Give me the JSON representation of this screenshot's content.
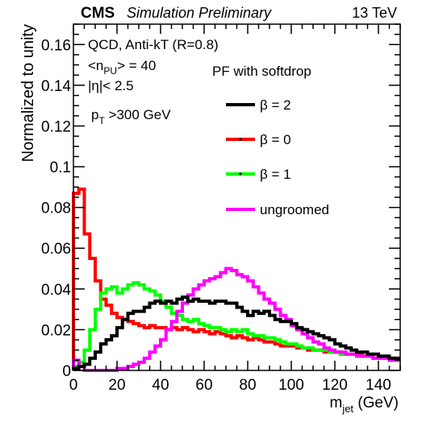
{
  "header": {
    "cms": "CMS",
    "subtitle": "Simulation Preliminary",
    "energy": "13 TeV"
  },
  "annotations": {
    "line1": "QCD, Anti-kT (R=0.8)",
    "pu_open": "<n",
    "pu_sub": "PU",
    "pu_close": "> = 40",
    "eta": "|η|< 2.5",
    "pt_main": "p",
    "pt_sub": "T",
    "pt_rest": " >300 GeV"
  },
  "chart_data": {
    "type": "line",
    "step": true,
    "xlabel_main": "m",
    "xlabel_sub": "jet",
    "xlabel_rest": " (GeV)",
    "ylabel": "Normalized to unity",
    "xlim": [
      0,
      150
    ],
    "ylim": [
      0,
      0.17
    ],
    "xticks": [
      "0",
      "20",
      "40",
      "60",
      "80",
      "100",
      "120",
      "140"
    ],
    "yticks": [
      "0",
      "0.02",
      "0.04",
      "0.06",
      "0.08",
      "0.1",
      "0.12",
      "0.14",
      "0.16"
    ],
    "legend_title": "PF with softdrop",
    "bin_width": 2.5,
    "series": [
      {
        "name": "β = 2",
        "color": "#000000",
        "values": [
          0.001,
          0.002,
          0.003,
          0.006,
          0.009,
          0.013,
          0.015,
          0.017,
          0.021,
          0.025,
          0.028,
          0.029,
          0.029,
          0.031,
          0.033,
          0.034,
          0.033,
          0.034,
          0.033,
          0.035,
          0.036,
          0.034,
          0.035,
          0.034,
          0.034,
          0.033,
          0.034,
          0.034,
          0.033,
          0.033,
          0.031,
          0.029,
          0.027,
          0.029,
          0.028,
          0.029,
          0.027,
          0.025,
          0.024,
          0.024,
          0.023,
          0.021,
          0.02,
          0.019,
          0.018,
          0.017,
          0.016,
          0.015,
          0.013,
          0.012,
          0.011,
          0.01,
          0.009,
          0.009,
          0.008,
          0.008,
          0.007,
          0.007,
          0.006,
          0.006
        ]
      },
      {
        "name": "β = 0",
        "color": "#ff0000",
        "values": [
          0.087,
          0.089,
          0.067,
          0.055,
          0.044,
          0.035,
          0.032,
          0.028,
          0.026,
          0.025,
          0.024,
          0.023,
          0.022,
          0.021,
          0.022,
          0.021,
          0.021,
          0.02,
          0.021,
          0.02,
          0.021,
          0.02,
          0.019,
          0.02,
          0.019,
          0.018,
          0.019,
          0.018,
          0.017,
          0.016,
          0.017,
          0.016,
          0.015,
          0.016,
          0.015,
          0.014,
          0.014,
          0.013,
          0.012,
          0.012,
          0.012,
          0.011,
          0.011,
          0.01,
          0.01,
          0.01,
          0.009,
          0.009,
          0.009,
          0.008,
          0.008,
          0.008,
          0.008,
          0.007,
          0.007,
          0.006,
          0.006,
          0.006,
          0.006,
          0.005
        ]
      },
      {
        "name": "β = 1",
        "color": "#00ff00",
        "values": [
          0.002,
          0.004,
          0.01,
          0.02,
          0.03,
          0.038,
          0.04,
          0.041,
          0.038,
          0.04,
          0.042,
          0.043,
          0.042,
          0.04,
          0.039,
          0.037,
          0.034,
          0.031,
          0.028,
          0.027,
          0.025,
          0.024,
          0.025,
          0.023,
          0.022,
          0.021,
          0.021,
          0.02,
          0.019,
          0.02,
          0.019,
          0.02,
          0.018,
          0.017,
          0.017,
          0.016,
          0.016,
          0.015,
          0.014,
          0.013,
          0.013,
          0.012,
          0.011,
          0.011,
          0.01,
          0.01,
          0.01,
          0.009,
          0.009,
          0.008,
          0.008,
          0.008,
          0.007,
          0.007,
          0.007,
          0.006,
          0.006,
          0.006,
          0.005,
          0.005
        ]
      },
      {
        "name": "ungroomed",
        "color": "#ff00ff",
        "values": [
          0.005,
          0.002,
          0.0,
          0.0,
          0.0,
          0.0,
          0.0,
          0.0,
          0.001,
          0.001,
          0.002,
          0.003,
          0.004,
          0.006,
          0.009,
          0.012,
          0.015,
          0.02,
          0.024,
          0.029,
          0.033,
          0.037,
          0.04,
          0.042,
          0.044,
          0.045,
          0.046,
          0.048,
          0.05,
          0.049,
          0.047,
          0.046,
          0.044,
          0.041,
          0.038,
          0.035,
          0.033,
          0.03,
          0.027,
          0.025,
          0.022,
          0.02,
          0.018,
          0.016,
          0.014,
          0.013,
          0.011,
          0.01,
          0.009,
          0.009,
          0.008,
          0.008,
          0.007,
          0.007,
          0.007,
          0.006,
          0.006,
          0.006,
          0.005,
          0.005
        ]
      }
    ]
  }
}
